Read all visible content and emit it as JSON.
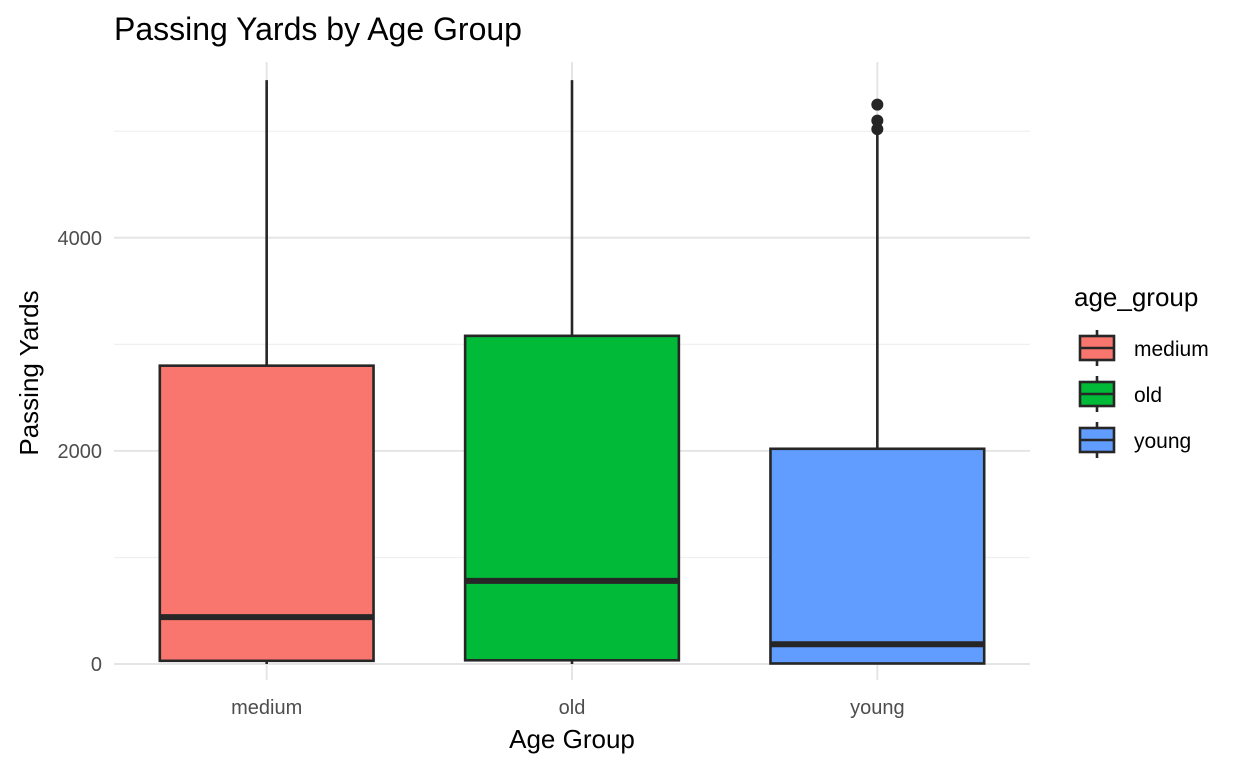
{
  "chart_data": {
    "type": "box",
    "title": "Passing Yards by Age Group",
    "xlabel": "Age Group",
    "ylabel": "Passing Yards",
    "ylim": [
      -150,
      5650
    ],
    "yticks": [
      0,
      2000,
      4000
    ],
    "ytick_labels": [
      "0",
      "2000",
      "4000"
    ],
    "grid": true,
    "categories": [
      "medium",
      "old",
      "young"
    ],
    "colors": [
      "#F8766D",
      "#00BA38",
      "#619CFF"
    ],
    "boxes": [
      {
        "category": "medium",
        "min": 0,
        "q1": 30,
        "median": 440,
        "q3": 2800,
        "max": 5480,
        "outliers": []
      },
      {
        "category": "old",
        "min": 0,
        "q1": 35,
        "median": 780,
        "q3": 3080,
        "max": 5480,
        "outliers": []
      },
      {
        "category": "young",
        "min": 0,
        "q1": 5,
        "median": 185,
        "q3": 2020,
        "max": 4990,
        "outliers": [
          5020,
          5100,
          5250
        ]
      }
    ],
    "legend": {
      "title": "age_group",
      "position": "right",
      "entries": [
        "medium",
        "old",
        "young"
      ]
    }
  }
}
